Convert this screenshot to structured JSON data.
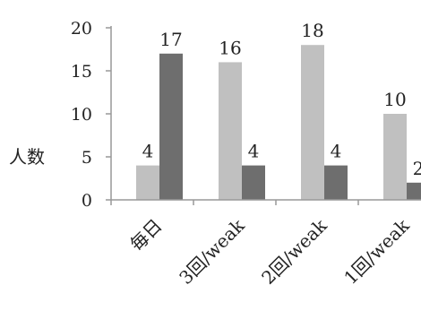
{
  "chart_data": {
    "type": "bar",
    "ylabel": "人数",
    "ylim": [
      0,
      20
    ],
    "yticks": [
      0,
      5,
      10,
      15,
      20
    ],
    "categories": [
      "毎日",
      "3回/weak",
      "2回/weak",
      "1回/weak"
    ],
    "series": [
      {
        "values": [
          4,
          16,
          18,
          10
        ],
        "color": "#c0c0c0"
      },
      {
        "values": [
          17,
          4,
          4,
          2
        ],
        "color": "#6e6e6e"
      }
    ],
    "data_labels": true,
    "grid": false,
    "legend": "none"
  }
}
